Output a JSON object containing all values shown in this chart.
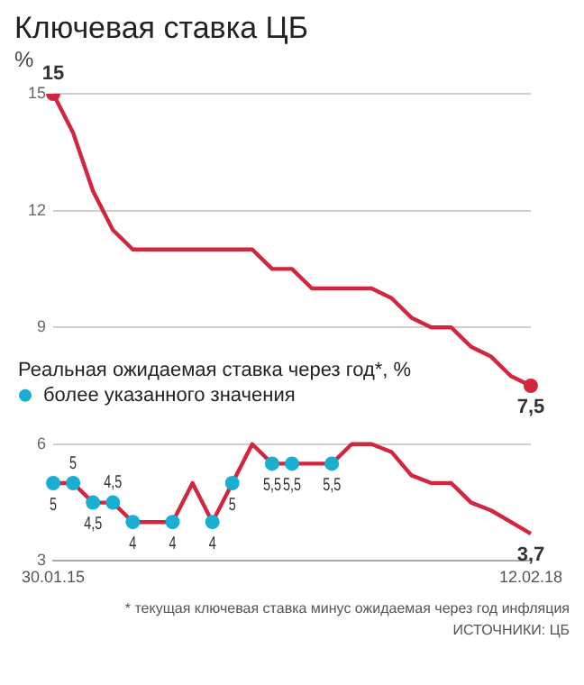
{
  "chart_data": {
    "type": "line",
    "title": "Ключевая ставка ЦБ",
    "ylabel": "%",
    "categories": [
      "30.01.15",
      null,
      null,
      null,
      null,
      null,
      null,
      null,
      null,
      null,
      null,
      null,
      null,
      null,
      null,
      null,
      null,
      null,
      null,
      null,
      null,
      null,
      null,
      null,
      "12.02.18"
    ],
    "series": [
      {
        "color": "#d2263f",
        "values": [
          15,
          14,
          12.5,
          11.5,
          11,
          11,
          11,
          11,
          11,
          11,
          11,
          10.5,
          10.5,
          10,
          10,
          10,
          10,
          9.75,
          9.25,
          9,
          9,
          8.5,
          8.25,
          7.75,
          7.5
        ]
      },
      {
        "type": "scatter",
        "marker": "circle",
        "color": "#d2263f",
        "values": [
          15,
          null,
          null,
          null,
          null,
          null,
          null,
          null,
          null,
          null,
          null,
          null,
          null,
          null,
          null,
          null,
          null,
          null,
          null,
          null,
          null,
          null,
          null,
          null,
          7.5
        ],
        "value_labels": [
          "15",
          null,
          null,
          null,
          null,
          null,
          null,
          null,
          null,
          null,
          null,
          null,
          null,
          null,
          null,
          null,
          null,
          null,
          null,
          null,
          null,
          null,
          null,
          null,
          "7,5"
        ]
      },
      {
        "color": "#d2263f",
        "values": [
          5,
          5,
          4.5,
          4.5,
          4,
          4,
          4,
          5,
          4,
          5,
          6,
          5.5,
          5.5,
          5.5,
          5.5,
          6,
          6,
          5.8,
          5.2,
          5,
          5,
          4.5,
          4.3,
          4,
          3.7
        ],
        "value_labels": [
          null,
          null,
          null,
          null,
          null,
          null,
          null,
          null,
          null,
          null,
          null,
          null,
          null,
          null,
          null,
          null,
          null,
          null,
          null,
          null,
          null,
          null,
          null,
          null,
          "3,7"
        ]
      },
      {
        "type": "scatter",
        "marker": "circle",
        "name": "более указанного значения",
        "color": "#1aaed0",
        "values": [
          5,
          5,
          4.5,
          4.5,
          4,
          null,
          4,
          null,
          4,
          5,
          null,
          5.5,
          5.5,
          null,
          5.5,
          null,
          null,
          null,
          null,
          null,
          null,
          null,
          null,
          null,
          null
        ],
        "value_labels": [
          "5",
          "5",
          "4,5",
          "4,5",
          "4",
          null,
          "4",
          null,
          "4",
          "5",
          null,
          "5,5",
          "5,5",
          null,
          "5,5",
          null,
          null,
          null,
          null,
          null,
          null,
          null,
          null,
          null,
          null
        ]
      }
    ],
    "ylim": [
      3,
      15
    ],
    "yticks": [
      3,
      6,
      9,
      12,
      15
    ],
    "grid": "y",
    "legend": "left",
    "marker": "none",
    "line_style": "solid",
    "annotations": [
      "Реальная ожидаемая ставка через год*, %",
      "* текущая ключевая ставка минус ожидаемая через год инфляция",
      "ИСТОЧНИКИ: ЦБ"
    ]
  }
}
